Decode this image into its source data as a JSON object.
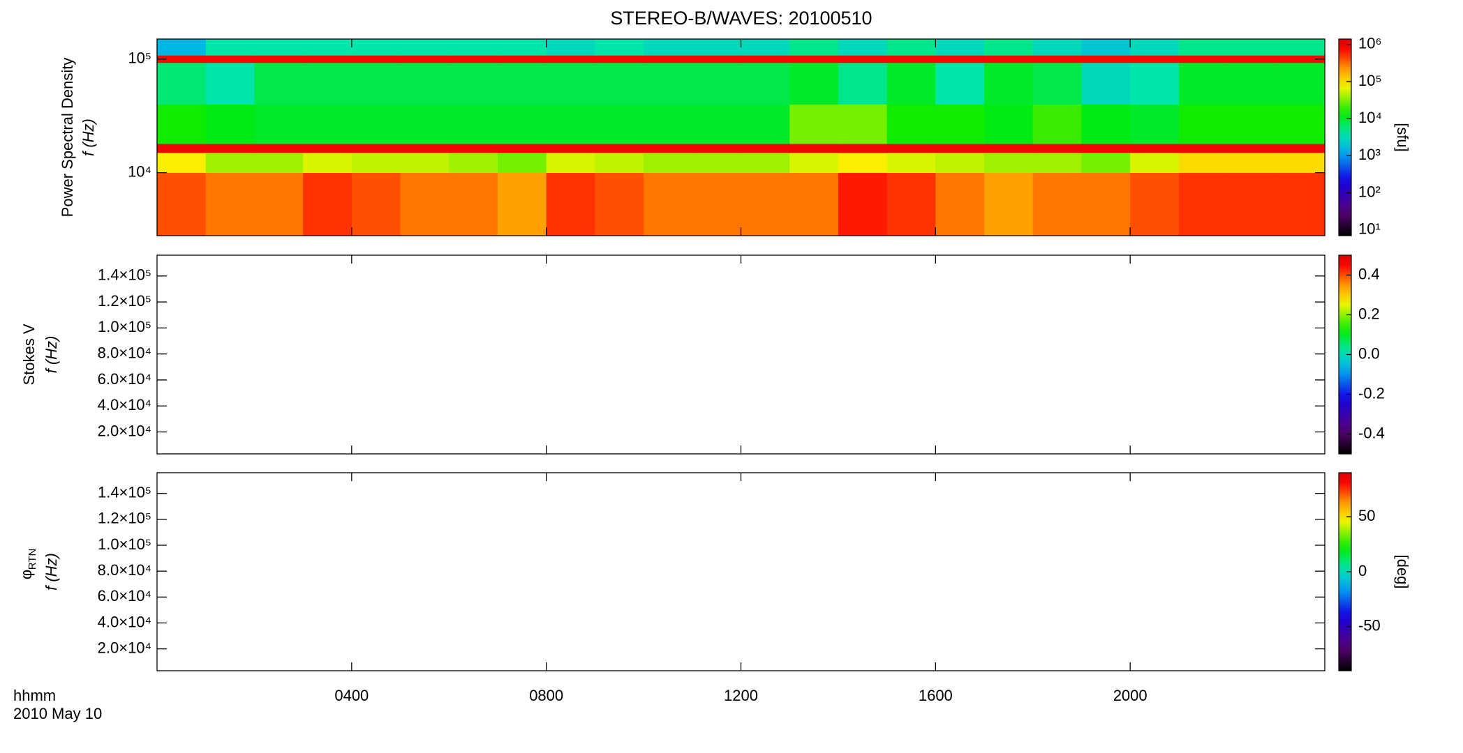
{
  "chart_data": [
    {
      "type": "heatmap",
      "title": "STEREO-B/WAVES: 20100510",
      "ylabel": "Power Spectral Density",
      "ylabel2": "f (Hz)",
      "colorbar_label": "[sfu]",
      "colormap": "rainbow",
      "log_y": true,
      "log_z": true,
      "xlim": [
        0,
        24
      ],
      "xticks": [
        4,
        8,
        12,
        16,
        20
      ],
      "ylim": [
        2790,
        150000
      ],
      "yticks": [
        {
          "value": 10000,
          "label": "10⁴"
        },
        {
          "value": 100000,
          "label": "10⁵"
        }
      ],
      "zlim": [
        7,
        1400000
      ],
      "zticks": [
        {
          "value": 10,
          "label": "10¹"
        },
        {
          "value": 100,
          "label": "10²"
        },
        {
          "value": 1000,
          "label": "10³"
        },
        {
          "value": 10000,
          "label": "10⁴"
        },
        {
          "value": 100000,
          "label": "10⁵"
        },
        {
          "value": 1000000,
          "label": "10⁶"
        }
      ],
      "xbins": [
        0,
        1,
        2,
        3,
        4,
        5,
        6,
        7,
        8,
        9,
        10,
        11,
        12,
        13,
        14,
        15,
        16,
        17,
        18,
        19,
        20,
        21,
        22,
        23,
        24
      ],
      "ybins": [
        2790,
        10000,
        15000,
        18000,
        40000,
        93000,
        108000,
        150000
      ],
      "values": [
        [
          400000,
          300000,
          300000,
          500000,
          400000,
          300000,
          300000,
          200000,
          500000,
          400000,
          300000,
          300000,
          300000,
          300000,
          600000,
          500000,
          300000,
          200000,
          300000,
          300000,
          400000,
          500000,
          500000,
          500000
        ],
        [
          80000,
          40000,
          40000,
          60000,
          50000,
          50000,
          40000,
          30000,
          60000,
          50000,
          40000,
          40000,
          40000,
          60000,
          80000,
          60000,
          50000,
          40000,
          40000,
          30000,
          60000,
          100000,
          100000,
          100000
        ],
        [
          900000,
          900000,
          900000,
          900000,
          900000,
          900000,
          900000,
          900000,
          900000,
          900000,
          900000,
          900000,
          900000,
          900000,
          900000,
          900000,
          900000,
          900000,
          900000,
          900000,
          900000,
          900000,
          900000,
          900000
        ],
        [
          15000,
          12000,
          10000,
          10000,
          10000,
          10000,
          10000,
          10000,
          10000,
          10000,
          10000,
          10000,
          10000,
          30000,
          30000,
          15000,
          15000,
          12000,
          20000,
          12000,
          10000,
          15000,
          15000,
          15000
        ],
        [
          6000,
          4000,
          8000,
          8000,
          8000,
          8000,
          8000,
          8000,
          8000,
          8000,
          8000,
          8000,
          8000,
          10000,
          5000,
          10000,
          4000,
          10000,
          8000,
          3000,
          4000,
          10000,
          10000,
          10000
        ],
        [
          800000,
          800000,
          800000,
          800000,
          800000,
          800000,
          800000,
          800000,
          800000,
          800000,
          800000,
          800000,
          800000,
          800000,
          800000,
          800000,
          800000,
          800000,
          800000,
          800000,
          800000,
          800000,
          800000,
          800000
        ],
        [
          1500,
          4000,
          4000,
          4000,
          4000,
          4000,
          4000,
          4000,
          3000,
          4000,
          3000,
          3000,
          3000,
          5000,
          3000,
          5000,
          3000,
          5000,
          3000,
          2000,
          3000,
          5000,
          5000,
          5000
        ]
      ]
    },
    {
      "type": "heatmap",
      "ylabel": "Stokes V",
      "ylabel2": "f (Hz)",
      "colormap": "rainbow",
      "xlim": [
        0,
        24
      ],
      "xticks": [
        4,
        8,
        12,
        16,
        20
      ],
      "ylim": [
        3100,
        156000
      ],
      "yticks": [
        {
          "value": 20000,
          "label": "2.0×10⁴"
        },
        {
          "value": 40000,
          "label": "4.0×10⁴"
        },
        {
          "value": 60000,
          "label": "6.0×10⁴"
        },
        {
          "value": 80000,
          "label": "8.0×10⁴"
        },
        {
          "value": 100000,
          "label": "1.0×10⁵"
        },
        {
          "value": 120000,
          "label": "1.2×10⁵"
        },
        {
          "value": 140000,
          "label": "1.4×10⁵"
        }
      ],
      "zlim": [
        -0.5,
        0.5
      ],
      "zticks": [
        -0.4,
        -0.2,
        {
          "value": 0,
          "label": "0.0"
        },
        0.2,
        0.4
      ]
    },
    {
      "type": "heatmap",
      "ylabel_symbol": "φ",
      "ylabel_sub": "RTN",
      "ylabel2": "f (Hz)",
      "colorbar_label": "[deg]",
      "colormap": "rainbow",
      "xlabel": "hhmm",
      "date": "2010 May 10",
      "xlim": [
        0,
        24
      ],
      "xticks": [
        {
          "value": 4,
          "label": "0400"
        },
        {
          "value": 8,
          "label": "0800"
        },
        {
          "value": 12,
          "label": "1200"
        },
        {
          "value": 16,
          "label": "1600"
        },
        {
          "value": 20,
          "label": "2000"
        }
      ],
      "ylim": [
        3100,
        156000
      ],
      "yticks": [
        {
          "value": 20000,
          "label": "2.0×10⁴"
        },
        {
          "value": 40000,
          "label": "4.0×10⁴"
        },
        {
          "value": 60000,
          "label": "6.0×10⁴"
        },
        {
          "value": 80000,
          "label": "8.0×10⁴"
        },
        {
          "value": 100000,
          "label": "1.0×10⁵"
        },
        {
          "value": 120000,
          "label": "1.2×10⁵"
        },
        {
          "value": 140000,
          "label": "1.4×10⁵"
        }
      ],
      "zlim": [
        -90,
        90
      ],
      "zticks": [
        -50,
        0,
        50
      ]
    }
  ]
}
